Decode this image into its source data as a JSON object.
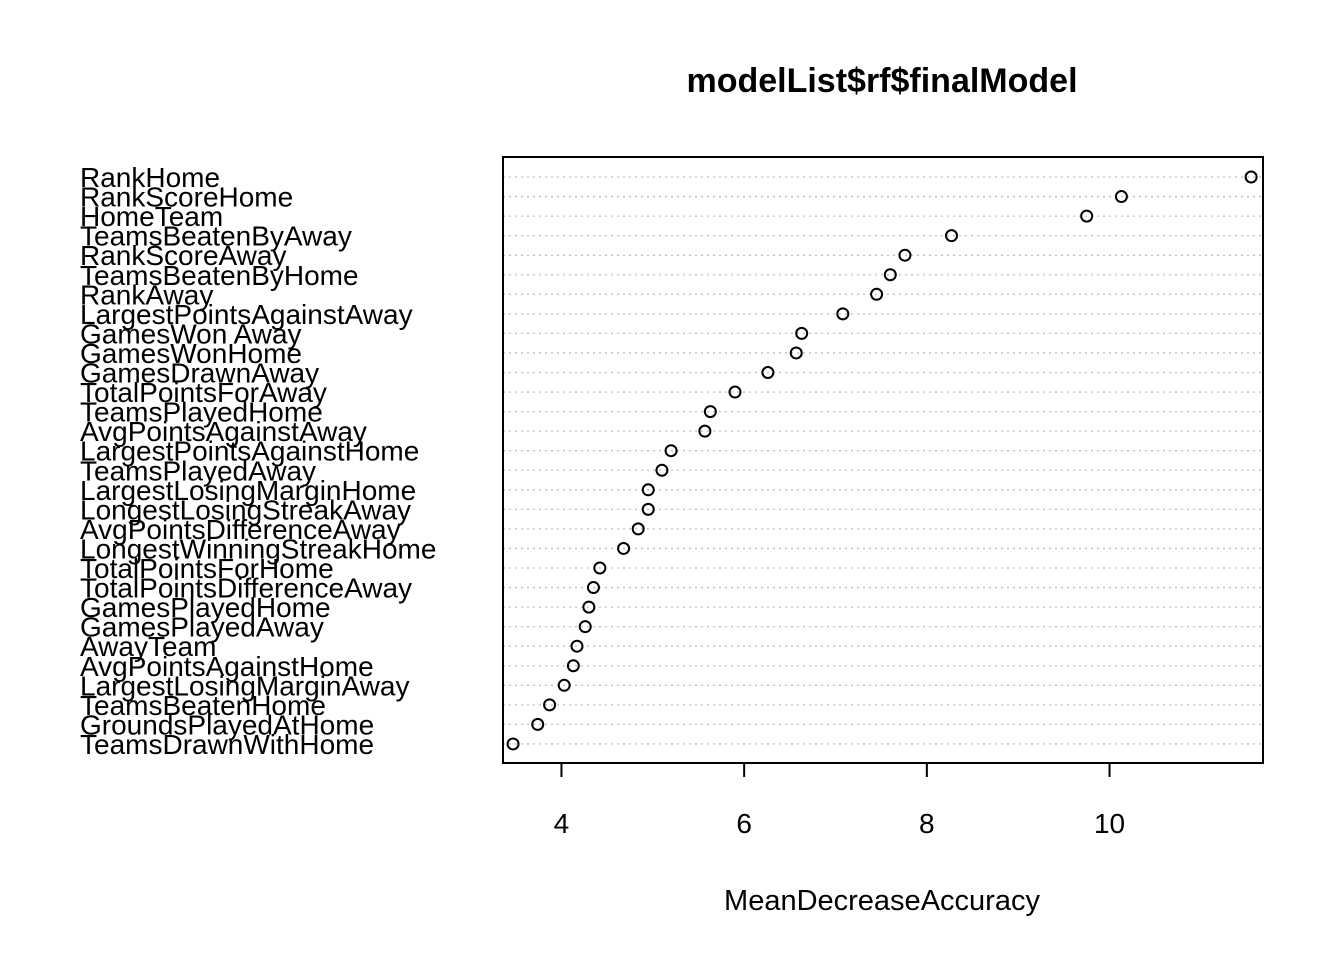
{
  "chart_data": {
    "type": "scatter",
    "title": "modelList$rf$finalModel",
    "xlabel": "MeanDecreaseAccuracy",
    "ylabel": "",
    "xlim": [
      3.36,
      11.68
    ],
    "x_ticks": [
      4,
      6,
      8,
      10
    ],
    "grid": true,
    "categories": [
      "RankHome",
      "RankScoreHome",
      "HomeTeam",
      "TeamsBeatenByAway",
      "RankScoreAway",
      "TeamsBeatenByHome",
      "RankAway",
      "LargestPointsAgainstAway",
      "GamesWon Away",
      "GamesWonHome",
      "GamesDrawnAway",
      "TotalPointsForAway",
      "TeamsPlayedHome",
      "AvgPointsAgainstAway",
      "LargestPointsAgainstHome",
      "TeamsPlayedAway",
      "LargestLosingMarginHome",
      "LongestLosingStreakAway",
      "AvgPointsDifferenceAway",
      "LongestWinningStreakHome",
      "TotalPointsForHome",
      "TotalPointsDifferenceAway",
      "GamesPlayedHome",
      "GamesPlayedAway",
      "AwayTeam",
      "AvgPointsAgainstHome",
      "LargestLosingMarginAway",
      "TeamsBeatenHome",
      "GroundsPlayedAtHome",
      "TeamsDrawnWithHome"
    ],
    "values": [
      11.55,
      10.13,
      9.75,
      8.27,
      7.76,
      7.6,
      7.45,
      7.08,
      6.63,
      6.57,
      6.26,
      5.9,
      5.63,
      5.57,
      5.2,
      5.1,
      4.95,
      4.95,
      4.84,
      4.68,
      4.42,
      4.35,
      4.3,
      4.26,
      4.17,
      4.13,
      4.03,
      3.87,
      3.74,
      3.47
    ]
  }
}
